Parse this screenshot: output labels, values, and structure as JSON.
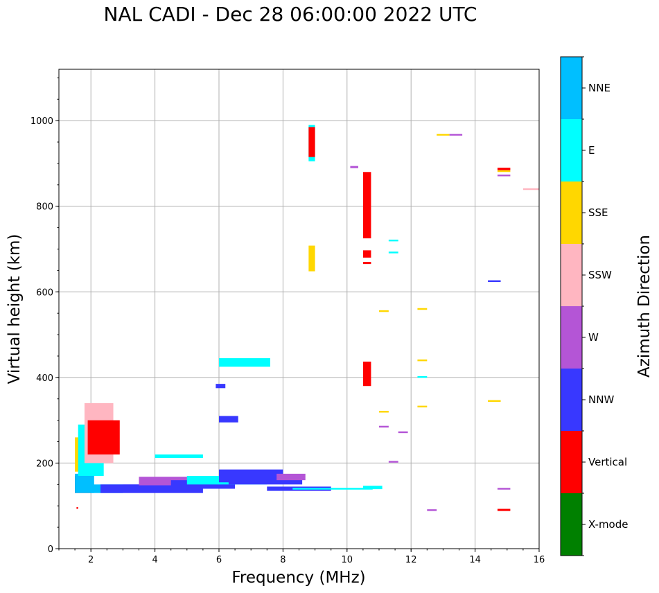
{
  "title": "NAL CADI - Dec 28 06:00:00 2022 UTC",
  "chart_data": {
    "type": "scatter",
    "xlabel": "Frequency (MHz)",
    "ylabel": "Virtual height (km)",
    "xlim": [
      1,
      16
    ],
    "ylim": [
      0,
      1120
    ],
    "xticks": [
      "2",
      "4",
      "6",
      "8",
      "10",
      "12",
      "14",
      "16"
    ],
    "yticks": [
      "0",
      "200",
      "400",
      "600",
      "800",
      "1000"
    ],
    "grid": true,
    "colorbar": {
      "label": "Azimuth Direction",
      "categories": [
        "X-mode",
        "Vertical",
        "NNW",
        "W",
        "SSW",
        "SSE",
        "E",
        "NNE"
      ],
      "colors": [
        "#008000",
        "#ff0000",
        "#3838ff",
        "#b455d6",
        "#ffb6c1",
        "#ffd700",
        "#00ffff",
        "#00bfff"
      ]
    },
    "segments": [
      {
        "f0": 1.5,
        "f1": 2.0,
        "h0": 130,
        "h1": 170,
        "dir": "Vertical"
      },
      {
        "f0": 1.5,
        "f1": 2.1,
        "h0": 130,
        "h1": 175,
        "dir": "NNE"
      },
      {
        "f0": 1.5,
        "f1": 2.2,
        "h0": 180,
        "h1": 260,
        "dir": "SSE"
      },
      {
        "f0": 1.6,
        "f1": 2.4,
        "h0": 170,
        "h1": 290,
        "dir": "E"
      },
      {
        "f0": 1.8,
        "f1": 2.7,
        "h0": 200,
        "h1": 340,
        "dir": "SSW"
      },
      {
        "f0": 1.9,
        "f1": 2.9,
        "h0": 220,
        "h1": 300,
        "dir": "Vertical"
      },
      {
        "f0": 2.0,
        "f1": 3.0,
        "h0": 130,
        "h1": 150,
        "dir": "NNE"
      },
      {
        "f0": 2.3,
        "f1": 5.5,
        "h0": 130,
        "h1": 150,
        "dir": "NNW"
      },
      {
        "f0": 3.0,
        "f1": 4.8,
        "h0": 135,
        "h1": 150,
        "dir": "NNW"
      },
      {
        "f0": 3.5,
        "f1": 6.0,
        "h0": 148,
        "h1": 168,
        "dir": "W"
      },
      {
        "f0": 4.5,
        "f1": 6.5,
        "h0": 140,
        "h1": 160,
        "dir": "NNW"
      },
      {
        "f0": 5.0,
        "f1": 7.5,
        "h0": 150,
        "h1": 170,
        "dir": "E"
      },
      {
        "f0": 6.0,
        "f1": 8.0,
        "h0": 155,
        "h1": 185,
        "dir": "NNW"
      },
      {
        "f0": 6.3,
        "f1": 8.6,
        "h0": 150,
        "h1": 170,
        "dir": "NNW"
      },
      {
        "f0": 7.8,
        "f1": 8.7,
        "h0": 160,
        "h1": 175,
        "dir": "W"
      },
      {
        "f0": 7.5,
        "f1": 9.5,
        "h0": 135,
        "h1": 145,
        "dir": "NNW"
      },
      {
        "f0": 8.3,
        "f1": 10.8,
        "h0": 138,
        "h1": 142,
        "dir": "E"
      },
      {
        "f0": 10.5,
        "f1": 11.1,
        "h0": 139,
        "h1": 147,
        "dir": "E"
      },
      {
        "f0": 4.0,
        "f1": 5.5,
        "h0": 212,
        "h1": 220,
        "dir": "E"
      },
      {
        "f0": 5.9,
        "f1": 6.2,
        "h0": 375,
        "h1": 385,
        "dir": "NNW"
      },
      {
        "f0": 6.0,
        "f1": 7.6,
        "h0": 425,
        "h1": 445,
        "dir": "E"
      },
      {
        "f0": 6.0,
        "f1": 6.6,
        "h0": 295,
        "h1": 310,
        "dir": "NNW"
      },
      {
        "f0": 8.8,
        "f1": 9.0,
        "h0": 905,
        "h1": 990,
        "dir": "E"
      },
      {
        "f0": 8.8,
        "f1": 9.0,
        "h0": 915,
        "h1": 985,
        "dir": "Vertical"
      },
      {
        "f0": 8.8,
        "f1": 9.0,
        "h0": 648,
        "h1": 708,
        "dir": "SSE"
      },
      {
        "f0": 10.5,
        "f1": 10.75,
        "h0": 725,
        "h1": 880,
        "dir": "Vertical"
      },
      {
        "f0": 10.5,
        "f1": 10.75,
        "h0": 680,
        "h1": 697,
        "dir": "Vertical"
      },
      {
        "f0": 10.5,
        "f1": 10.75,
        "h0": 380,
        "h1": 437,
        "dir": "Vertical"
      },
      {
        "f0": 10.1,
        "f1": 10.35,
        "h0": 889,
        "h1": 894,
        "dir": "W"
      },
      {
        "f0": 10.5,
        "f1": 10.75,
        "h0": 665,
        "h1": 670,
        "dir": "Vertical"
      },
      {
        "f0": 11.3,
        "f1": 11.6,
        "h0": 718,
        "h1": 722,
        "dir": "E"
      },
      {
        "f0": 11.3,
        "f1": 11.6,
        "h0": 690,
        "h1": 694,
        "dir": "E"
      },
      {
        "f0": 11.0,
        "f1": 11.3,
        "h0": 553,
        "h1": 557,
        "dir": "SSE"
      },
      {
        "f0": 11.0,
        "f1": 11.3,
        "h0": 318,
        "h1": 322,
        "dir": "SSE"
      },
      {
        "f0": 11.0,
        "f1": 11.3,
        "h0": 283,
        "h1": 287,
        "dir": "W"
      },
      {
        "f0": 11.6,
        "f1": 11.9,
        "h0": 270,
        "h1": 274,
        "dir": "W"
      },
      {
        "f0": 11.3,
        "f1": 11.6,
        "h0": 201,
        "h1": 205,
        "dir": "W"
      },
      {
        "f0": 12.2,
        "f1": 12.5,
        "h0": 558,
        "h1": 562,
        "dir": "SSE"
      },
      {
        "f0": 12.2,
        "f1": 12.5,
        "h0": 438,
        "h1": 442,
        "dir": "SSE"
      },
      {
        "f0": 12.2,
        "f1": 12.5,
        "h0": 399,
        "h1": 403,
        "dir": "E"
      },
      {
        "f0": 12.2,
        "f1": 12.5,
        "h0": 330,
        "h1": 334,
        "dir": "SSE"
      },
      {
        "f0": 12.5,
        "f1": 12.8,
        "h0": 88,
        "h1": 92,
        "dir": "W"
      },
      {
        "f0": 12.8,
        "f1": 13.2,
        "h0": 965,
        "h1": 969,
        "dir": "SSE"
      },
      {
        "f0": 13.2,
        "f1": 13.6,
        "h0": 965,
        "h1": 969,
        "dir": "W"
      },
      {
        "f0": 14.4,
        "f1": 14.8,
        "h0": 623,
        "h1": 627,
        "dir": "NNW"
      },
      {
        "f0": 14.4,
        "f1": 14.8,
        "h0": 343,
        "h1": 347,
        "dir": "SSE"
      },
      {
        "f0": 14.7,
        "f1": 15.1,
        "h0": 884,
        "h1": 890,
        "dir": "Vertical"
      },
      {
        "f0": 14.7,
        "f1": 15.1,
        "h0": 880,
        "h1": 884,
        "dir": "SSE"
      },
      {
        "f0": 14.7,
        "f1": 15.1,
        "h0": 870,
        "h1": 874,
        "dir": "W"
      },
      {
        "f0": 14.7,
        "f1": 15.1,
        "h0": 138,
        "h1": 142,
        "dir": "W"
      },
      {
        "f0": 14.7,
        "f1": 15.1,
        "h0": 88,
        "h1": 93,
        "dir": "Vertical"
      },
      {
        "f0": 15.5,
        "f1": 16.0,
        "h0": 838,
        "h1": 842,
        "dir": "SSW"
      },
      {
        "f0": 1.55,
        "f1": 1.6,
        "h0": 93,
        "h1": 97,
        "dir": "Vertical"
      }
    ]
  }
}
